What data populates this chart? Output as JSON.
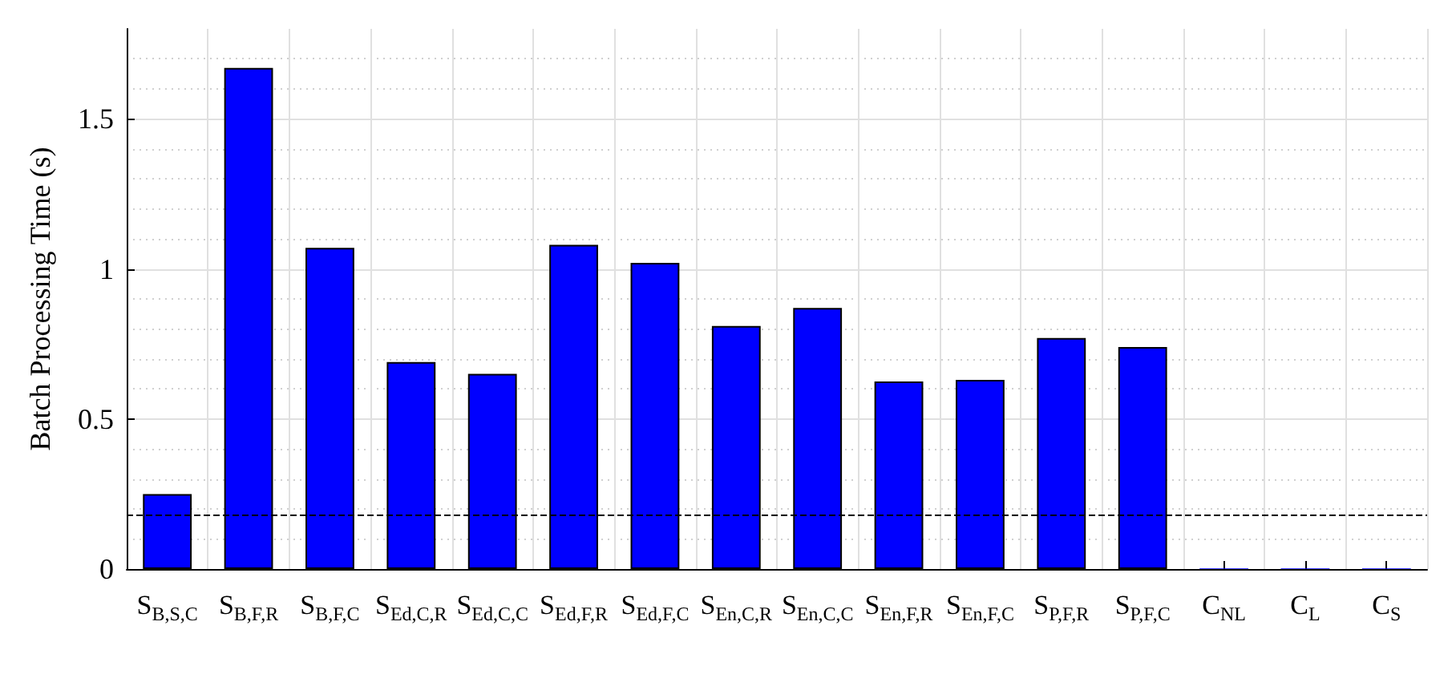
{
  "chart_data": {
    "type": "bar",
    "ylabel": "Batch Processing Time (s)",
    "categories": [
      "S$_{B,S,C}$",
      "S$_{B,F,R}$",
      "S$_{B,F,C}$",
      "S$_{Ed,C,R}$",
      "S$_{Ed,C,C}$",
      "S$_{Ed,F,R}$",
      "S$_{Ed,F,C}$",
      "S$_{En,C,R}$",
      "S$_{En,C,C}$",
      "S$_{En,F,R}$",
      "S$_{En,F,C}$",
      "S$_{P,F,R}$",
      "S$_{P,F,C}$",
      "C$_{NL}$",
      "C$_{L}$",
      "C$_{S}$"
    ],
    "values": [
      0.25,
      1.67,
      1.07,
      0.69,
      0.65,
      1.08,
      1.02,
      0.81,
      0.87,
      0.625,
      0.63,
      0.77,
      0.74,
      0.002,
      0.002,
      0.002
    ],
    "color": "#0000ff",
    "ylim": [
      0,
      1.8
    ],
    "yticks": [
      0,
      0.5,
      1,
      1.5
    ],
    "ref_lines": [
      {
        "axis": "y",
        "value": 0.18,
        "color": "#000000",
        "line_style": "dashed"
      }
    ],
    "grid": true
  }
}
